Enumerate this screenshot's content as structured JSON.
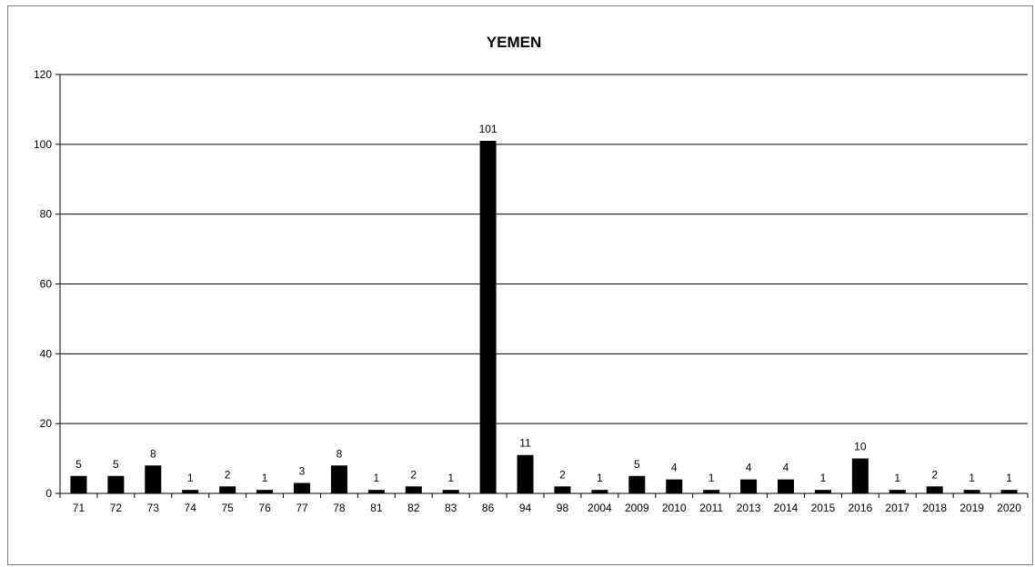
{
  "chart_data": {
    "type": "bar",
    "title": "YEMEN",
    "xlabel": "",
    "ylabel": "",
    "ylim": [
      0,
      120
    ],
    "yticks": [
      0,
      20,
      40,
      60,
      80,
      100,
      120
    ],
    "grid": true,
    "legend": "none",
    "bar_color": "#000000",
    "categories": [
      "71",
      "72",
      "73",
      "74",
      "75",
      "76",
      "77",
      "78",
      "81",
      "82",
      "83",
      "86",
      "94",
      "98",
      "2004",
      "2009",
      "2010",
      "2011",
      "2013",
      "2014",
      "2015",
      "2016",
      "2017",
      "2018",
      "2019",
      "2020"
    ],
    "values": [
      5,
      5,
      8,
      1,
      2,
      1,
      3,
      8,
      1,
      2,
      1,
      101,
      11,
      2,
      1,
      5,
      4,
      1,
      4,
      4,
      1,
      10,
      1,
      2,
      1,
      1
    ]
  }
}
